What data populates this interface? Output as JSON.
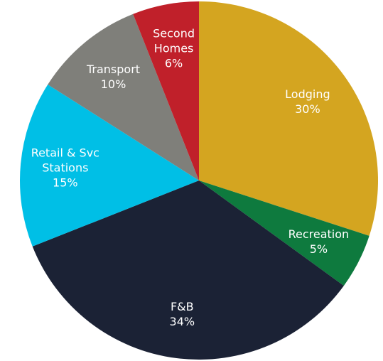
{
  "chart_data": {
    "type": "pie",
    "categories": [
      "Lodging",
      "Recreation",
      "F&B",
      "Retail & Svc Stations",
      "Transport",
      "Second Homes"
    ],
    "values": [
      30,
      5,
      34,
      15,
      10,
      6
    ],
    "value_labels": [
      "30%",
      "5%",
      "34%",
      "15%",
      "10%",
      "6%"
    ],
    "colors": [
      "#d4a520",
      "#0e7a3e",
      "#1b2235",
      "#00bfe6",
      "#7f7f7a",
      "#c0202a"
    ]
  }
}
